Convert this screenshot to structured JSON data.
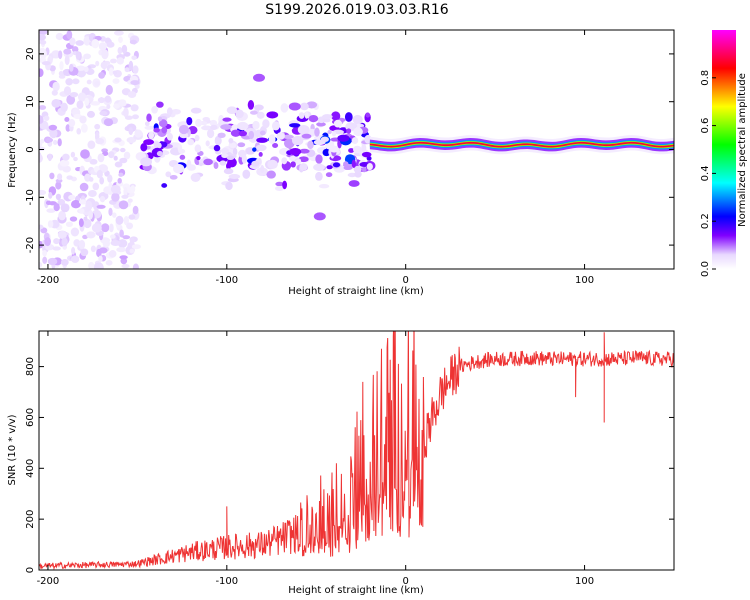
{
  "title": "S199.2026.019.03.03.R16",
  "chart_data": [
    {
      "type": "heatmap",
      "name": "spectrogram",
      "xlabel": "Height of straight line (km)",
      "ylabel": "Frequency (Hz)",
      "xlim": [
        -205,
        150
      ],
      "ylim": [
        -25,
        25
      ],
      "x_ticks": [
        -200,
        -100,
        0,
        100
      ],
      "y_ticks": [
        -20,
        -10,
        0,
        10,
        20
      ],
      "colorbar": {
        "label": "Normalized spectral amplitude",
        "range": [
          0,
          1
        ],
        "ticks": [
          0.0,
          0.2,
          0.4,
          0.6,
          0.8
        ],
        "colormap": [
          "#ffffff",
          "#e8d8ff",
          "#8000ff",
          "#0000ff",
          "#00ffff",
          "#00ff00",
          "#ffff00",
          "#ff0000",
          "#ff00ff"
        ]
      },
      "regions": [
        {
          "x_range": [
            -205,
            -150
          ],
          "freq_range": [
            -25,
            25
          ],
          "amplitude": 0.1,
          "description": "broadband noise"
        },
        {
          "x_range": [
            -150,
            -20
          ],
          "freq_range": [
            -15,
            12
          ],
          "amplitude": 0.3,
          "description": "scattered signal"
        },
        {
          "x_range": [
            -20,
            150
          ],
          "freq_center": 1,
          "freq_width": 2,
          "amplitude": 0.9,
          "description": "narrow line near 1 Hz"
        }
      ],
      "features": [
        {
          "x": -82,
          "freq": 15,
          "amplitude": 0.2
        },
        {
          "x": -48,
          "freq": -14,
          "amplitude": 0.2
        },
        {
          "x": -62,
          "freq": 9,
          "amplitude": 0.2
        }
      ]
    },
    {
      "type": "line",
      "name": "snr",
      "xlabel": "Height of straight line (km)",
      "ylabel": "SNR (10 * v/v)",
      "xlim": [
        -205,
        150
      ],
      "ylim": [
        0,
        940
      ],
      "x_ticks": [
        -200,
        -100,
        0,
        100
      ],
      "y_ticks": [
        0,
        200,
        400,
        600,
        800
      ],
      "series": [
        {
          "name": "SNR",
          "color": "#ee3333",
          "x": [
            -205,
            -190,
            -175,
            -160,
            -150,
            -140,
            -130,
            -120,
            -110,
            -100,
            -90,
            -80,
            -70,
            -60,
            -50,
            -40,
            -35,
            -30,
            -25,
            -20,
            -15,
            -10,
            -5,
            0,
            5,
            10,
            15,
            20,
            25,
            30,
            40,
            50,
            60,
            70,
            80,
            90,
            100,
            110,
            120,
            130,
            140,
            150
          ],
          "values": [
            15,
            18,
            20,
            22,
            25,
            40,
            55,
            70,
            80,
            90,
            95,
            100,
            120,
            150,
            200,
            250,
            300,
            320,
            400,
            450,
            500,
            550,
            600,
            650,
            610,
            500,
            600,
            700,
            750,
            800,
            820,
            830,
            830,
            835,
            830,
            830,
            830,
            830,
            830,
            835,
            830,
            830
          ]
        }
      ],
      "spikes": [
        {
          "x": 95,
          "value": 680
        },
        {
          "x": 111,
          "value": 580
        },
        {
          "x": 111,
          "value": 935
        },
        {
          "x": -24,
          "value": 740
        },
        {
          "x": -100,
          "value": 250
        }
      ]
    }
  ]
}
